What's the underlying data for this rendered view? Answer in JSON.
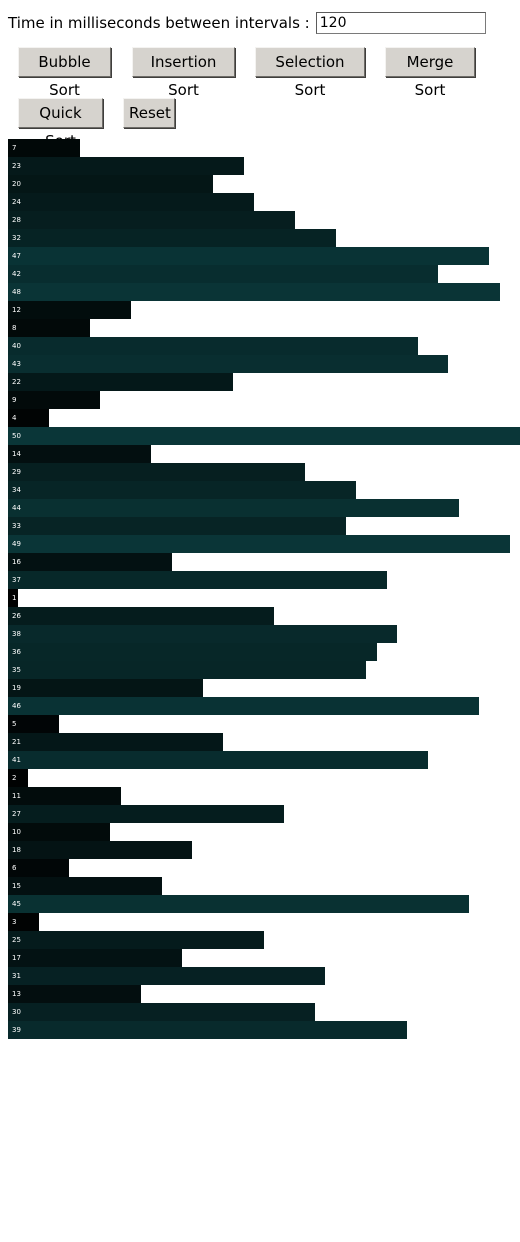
{
  "controls": {
    "interval_label": "Time in milliseconds between intervals :",
    "interval_value": "120",
    "buttons": {
      "bubble": "Bubble Sort",
      "insertion": "Insertion Sort",
      "selection": "Selection Sort",
      "merge": "Merge Sort",
      "quick": "Quick Sort",
      "reset": "Reset"
    }
  },
  "bars": {
    "max_value": 50,
    "color_light": "#0a3638",
    "color_dark": "#000000",
    "values": [
      7,
      23,
      20,
      24,
      28,
      32,
      47,
      42,
      48,
      12,
      8,
      40,
      43,
      22,
      9,
      4,
      50,
      14,
      29,
      34,
      44,
      33,
      49,
      16,
      37,
      1,
      26,
      38,
      36,
      35,
      19,
      46,
      5,
      21,
      41,
      2,
      11,
      27,
      10,
      18,
      6,
      15,
      45,
      3,
      25,
      17,
      31,
      13,
      30,
      39
    ]
  }
}
